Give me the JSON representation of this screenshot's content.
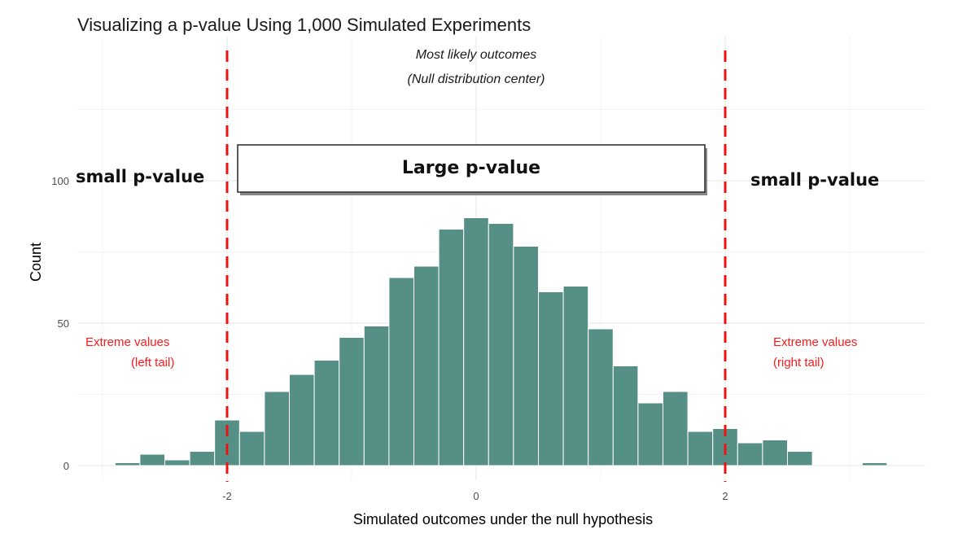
{
  "chart_data": {
    "type": "bar",
    "subtype": "histogram",
    "title": "Visualizing a p-value Using 1,000 Simulated Experiments",
    "xlabel": "Simulated outcomes under the null hypothesis",
    "ylabel": "Count",
    "xlim": [
      -3.0,
      3.0
    ],
    "ylim": [
      0,
      130
    ],
    "x_ticks": [
      {
        "value": -2,
        "label": "-2"
      },
      {
        "value": 0,
        "label": "0"
      },
      {
        "value": 2,
        "label": "2"
      }
    ],
    "y_ticks": [
      {
        "value": 0,
        "label": "0"
      },
      {
        "value": 50,
        "label": "50"
      },
      {
        "value": 100,
        "label": "100"
      }
    ],
    "bin_width": 0.2,
    "bins": [
      {
        "start": -2.9,
        "end": -2.7,
        "count": 1
      },
      {
        "start": -2.7,
        "end": -2.5,
        "count": 4
      },
      {
        "start": -2.5,
        "end": -2.3,
        "count": 2
      },
      {
        "start": -2.3,
        "end": -2.1,
        "count": 5
      },
      {
        "start": -2.1,
        "end": -1.9,
        "count": 16
      },
      {
        "start": -1.9,
        "end": -1.7,
        "count": 12
      },
      {
        "start": -1.7,
        "end": -1.5,
        "count": 26
      },
      {
        "start": -1.5,
        "end": -1.3,
        "count": 32
      },
      {
        "start": -1.3,
        "end": -1.1,
        "count": 37
      },
      {
        "start": -1.1,
        "end": -0.9,
        "count": 45
      },
      {
        "start": -0.9,
        "end": -0.7,
        "count": 49
      },
      {
        "start": -0.7,
        "end": -0.5,
        "count": 66
      },
      {
        "start": -0.5,
        "end": -0.3,
        "count": 70
      },
      {
        "start": -0.3,
        "end": -0.1,
        "count": 83
      },
      {
        "start": -0.1,
        "end": 0.1,
        "count": 87
      },
      {
        "start": 0.1,
        "end": 0.3,
        "count": 85
      },
      {
        "start": 0.3,
        "end": 0.5,
        "count": 77
      },
      {
        "start": 0.5,
        "end": 0.7,
        "count": 61
      },
      {
        "start": 0.7,
        "end": 0.9,
        "count": 63
      },
      {
        "start": 0.9,
        "end": 1.1,
        "count": 48
      },
      {
        "start": 1.1,
        "end": 1.3,
        "count": 35
      },
      {
        "start": 1.3,
        "end": 1.5,
        "count": 22
      },
      {
        "start": 1.5,
        "end": 1.7,
        "count": 26
      },
      {
        "start": 1.7,
        "end": 1.9,
        "count": 12
      },
      {
        "start": 1.9,
        "end": 2.1,
        "count": 13
      },
      {
        "start": 2.1,
        "end": 2.3,
        "count": 8
      },
      {
        "start": 2.3,
        "end": 2.5,
        "count": 9
      },
      {
        "start": 2.5,
        "end": 2.7,
        "count": 5
      },
      {
        "start": 3.1,
        "end": 3.3,
        "count": 1
      }
    ],
    "bar_color": "#558f85",
    "reference_lines": [
      {
        "x": -2,
        "color": "#ee1111",
        "style": "dashed"
      },
      {
        "x": 2,
        "color": "#ee1111",
        "style": "dashed"
      }
    ],
    "annotations": {
      "top_note_line1": "Most likely outcomes",
      "top_note_line2": "(Null distribution center)",
      "left_pvalue": "small p-value",
      "right_pvalue": "small p-value",
      "center_pvalue": "Large p-value",
      "left_tail_line1": "Extreme values",
      "left_tail_line2": "(left tail)",
      "right_tail_line1": "Extreme values",
      "right_tail_line2": "(right tail)"
    },
    "grid": true,
    "legend": "none"
  }
}
